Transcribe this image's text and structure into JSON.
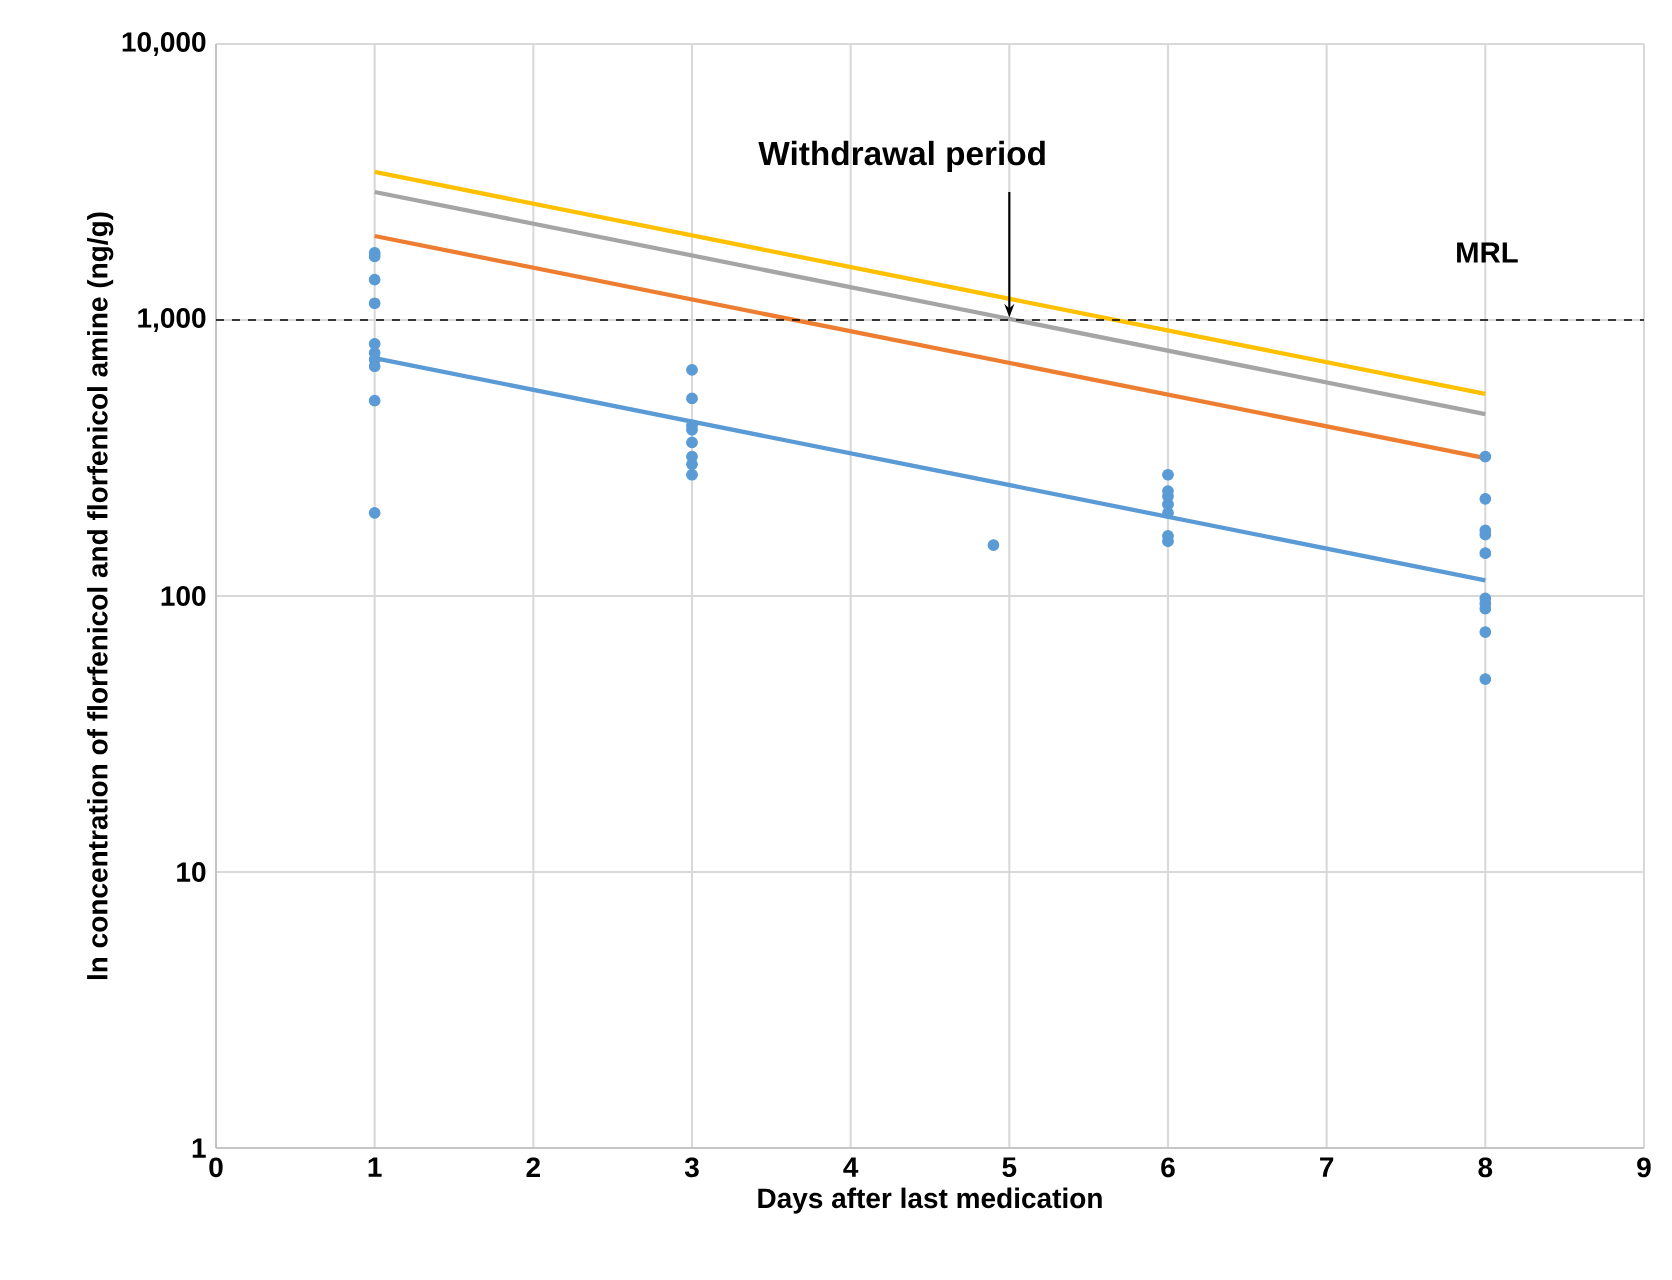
{
  "chart_data": {
    "type": "scatter",
    "xlabel": "Days after last medication",
    "ylabel": "ln concentration of florfenicol and florfenicol amine (ng/g)",
    "series": [
      {
        "marker": "circle",
        "color": "#5b9bd5",
        "x": [
          1,
          1,
          1,
          1,
          1,
          1,
          1,
          1,
          1,
          1,
          3,
          3,
          3,
          3,
          3,
          3,
          3,
          3,
          4.9,
          6,
          6,
          6,
          6,
          6,
          6,
          6,
          8,
          8,
          8,
          8,
          8,
          8,
          8,
          8,
          8,
          8
        ],
        "values": [
          1750,
          1700,
          1400,
          1150,
          820,
          760,
          720,
          680,
          510,
          200,
          660,
          520,
          415,
          400,
          360,
          320,
          300,
          275,
          153,
          275,
          240,
          230,
          215,
          200,
          165,
          158,
          320,
          225,
          173,
          167,
          143,
          98,
          94,
          90,
          74,
          50
        ]
      },
      {
        "type": "line",
        "color": "#ffc000",
        "x": [
          1,
          8
        ],
        "values": [
          3440,
          540
        ]
      },
      {
        "type": "line",
        "color": "#a5a5a5",
        "x": [
          1,
          8
        ],
        "values": [
          2910,
          456
        ]
      },
      {
        "type": "line",
        "color": "#ed7d31",
        "x": [
          1,
          8
        ],
        "values": [
          2015,
          316
        ]
      },
      {
        "type": "line",
        "color": "#5b9bd5",
        "x": [
          1,
          8
        ],
        "values": [
          728,
          114
        ]
      }
    ],
    "xlim": [
      0,
      9
    ],
    "xticks": [
      0,
      1,
      2,
      3,
      4,
      5,
      6,
      7,
      8,
      9
    ],
    "ylim": [
      1,
      10000
    ],
    "yticks": [
      1,
      10,
      100,
      {
        "value": 1000,
        "label": "1,000"
      },
      {
        "value": 10000,
        "label": "10,000"
      }
    ],
    "log": "y",
    "grid": true,
    "ref_lines": [
      {
        "axis": "y",
        "value": 1000,
        "label": "MRL",
        "color": "#000000",
        "line_style": "dashed"
      }
    ],
    "annotations": [
      {
        "text": "Withdrawal period",
        "x": 5,
        "y": 1000
      }
    ]
  }
}
